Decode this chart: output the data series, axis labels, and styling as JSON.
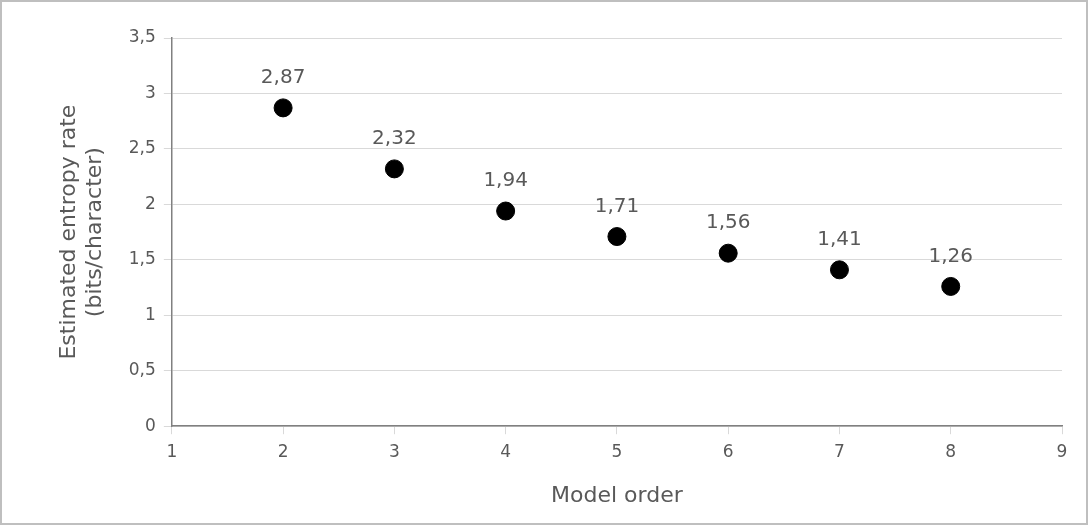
{
  "chart_data": {
    "type": "scatter",
    "xlabel": "Model order",
    "ylabel": "Estimated entropy rate\n(bits/character)",
    "x": [
      2,
      3,
      4,
      5,
      6,
      7,
      8
    ],
    "values": [
      2.87,
      2.32,
      1.94,
      1.71,
      1.56,
      1.41,
      1.26
    ],
    "value_labels": [
      "2,87",
      "2,32",
      "1,94",
      "1,71",
      "1,56",
      "1,41",
      "1,26"
    ],
    "color": "#000000",
    "marker": "circle",
    "xlim": [
      1,
      9
    ],
    "xticks": [
      1,
      2,
      3,
      4,
      5,
      6,
      7,
      8,
      9
    ],
    "ylim": [
      0,
      3.5
    ],
    "yticks": [
      0,
      {
        "value": 0.5,
        "label": "0,5"
      },
      1,
      {
        "value": 1.5,
        "label": "1,5"
      },
      2,
      {
        "value": 2.5,
        "label": "2,5"
      },
      3,
      {
        "value": 3.5,
        "label": "3,5"
      }
    ],
    "grid": "y",
    "legend": false
  }
}
